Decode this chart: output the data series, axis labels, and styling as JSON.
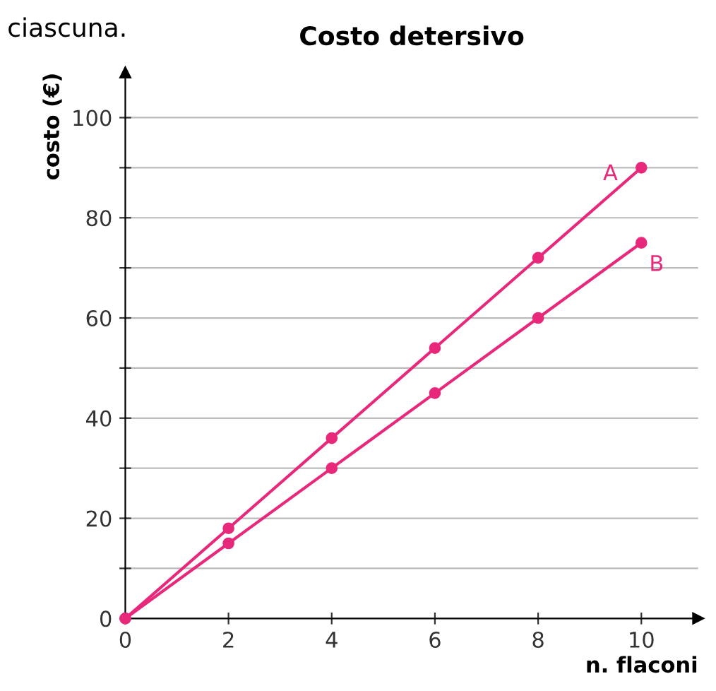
{
  "chart_data": {
    "type": "line",
    "title": "Costo detersivo",
    "xlabel": "n. flaconi",
    "ylabel": "costo (€)",
    "annotations": [
      "ciascuna."
    ],
    "x": [
      0,
      2,
      4,
      6,
      8,
      10
    ],
    "series": [
      {
        "name": "A",
        "color": "#e8287a",
        "values": [
          0,
          18,
          36,
          54,
          72,
          90
        ]
      },
      {
        "name": "B",
        "color": "#e8287a",
        "values": [
          0,
          15,
          30,
          45,
          60,
          75
        ]
      }
    ],
    "xlim": [
      0,
      11.1
    ],
    "ylim": [
      0,
      109
    ],
    "xticks": [
      0,
      2,
      4,
      6,
      8,
      10
    ],
    "yticks": [
      0,
      {
        "value": 10,
        "label": null
      },
      20,
      {
        "value": 30,
        "label": null
      },
      40,
      {
        "value": 50,
        "label": null
      },
      60,
      {
        "value": 70,
        "label": null
      },
      80,
      {
        "value": 90,
        "label": null
      },
      100
    ],
    "grid": "y",
    "marker": "circle",
    "line_style": "solid",
    "legend": false
  }
}
